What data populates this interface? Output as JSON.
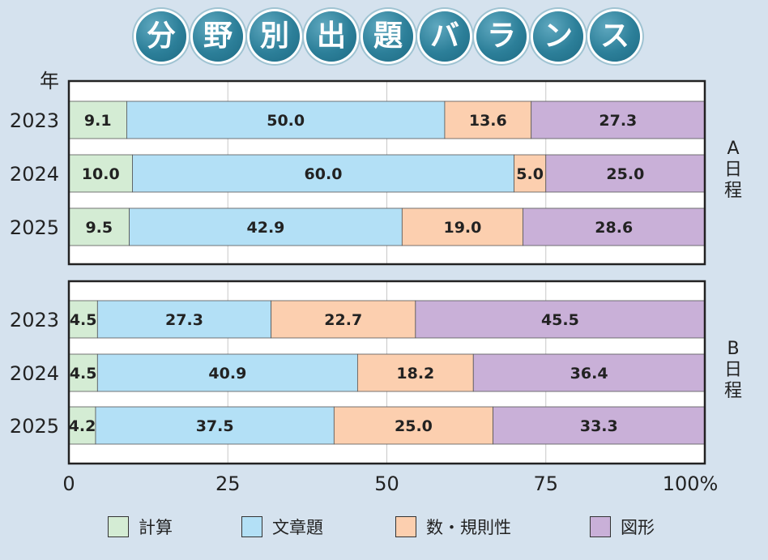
{
  "title_chars": [
    "分",
    "野",
    "別",
    "出",
    "題",
    "バ",
    "ラ",
    "ン",
    "ス"
  ],
  "colors": {
    "計算": "#d4ecd4",
    "文章題": "#b3e0f6",
    "数・規則性": "#fccfaf",
    "図形": "#c9b0d8"
  },
  "chart_data": [
    {
      "type": "bar",
      "orientation": "horizontal",
      "stacked": true,
      "title": "分野別出題バランス",
      "panel_label": "A日程",
      "ylabel": "年",
      "categories": [
        "2023",
        "2024",
        "2025"
      ],
      "series": [
        {
          "name": "計算",
          "values": [
            9.1,
            10.0,
            9.5
          ]
        },
        {
          "name": "文章題",
          "values": [
            50.0,
            60.0,
            42.9
          ]
        },
        {
          "name": "数・規則性",
          "values": [
            13.6,
            5.0,
            19.0
          ]
        },
        {
          "name": "図形",
          "values": [
            27.3,
            25.0,
            28.6
          ]
        }
      ],
      "xlim": [
        0,
        100
      ],
      "xticks": [
        "0",
        "25",
        "50",
        "75",
        "100%"
      ]
    },
    {
      "type": "bar",
      "orientation": "horizontal",
      "stacked": true,
      "panel_label": "B日程",
      "categories": [
        "2023",
        "2024",
        "2025"
      ],
      "series": [
        {
          "name": "計算",
          "values": [
            4.5,
            4.5,
            4.2
          ]
        },
        {
          "name": "文章題",
          "values": [
            27.3,
            40.9,
            37.5
          ]
        },
        {
          "name": "数・規則性",
          "values": [
            22.7,
            18.2,
            25.0
          ]
        },
        {
          "name": "図形",
          "values": [
            45.5,
            36.4,
            33.3
          ]
        }
      ],
      "xlim": [
        0,
        100
      ],
      "xticks": [
        "0",
        "25",
        "50",
        "75",
        "100%"
      ]
    }
  ],
  "legend": [
    "計算",
    "文章題",
    "数・規則性",
    "図形"
  ]
}
